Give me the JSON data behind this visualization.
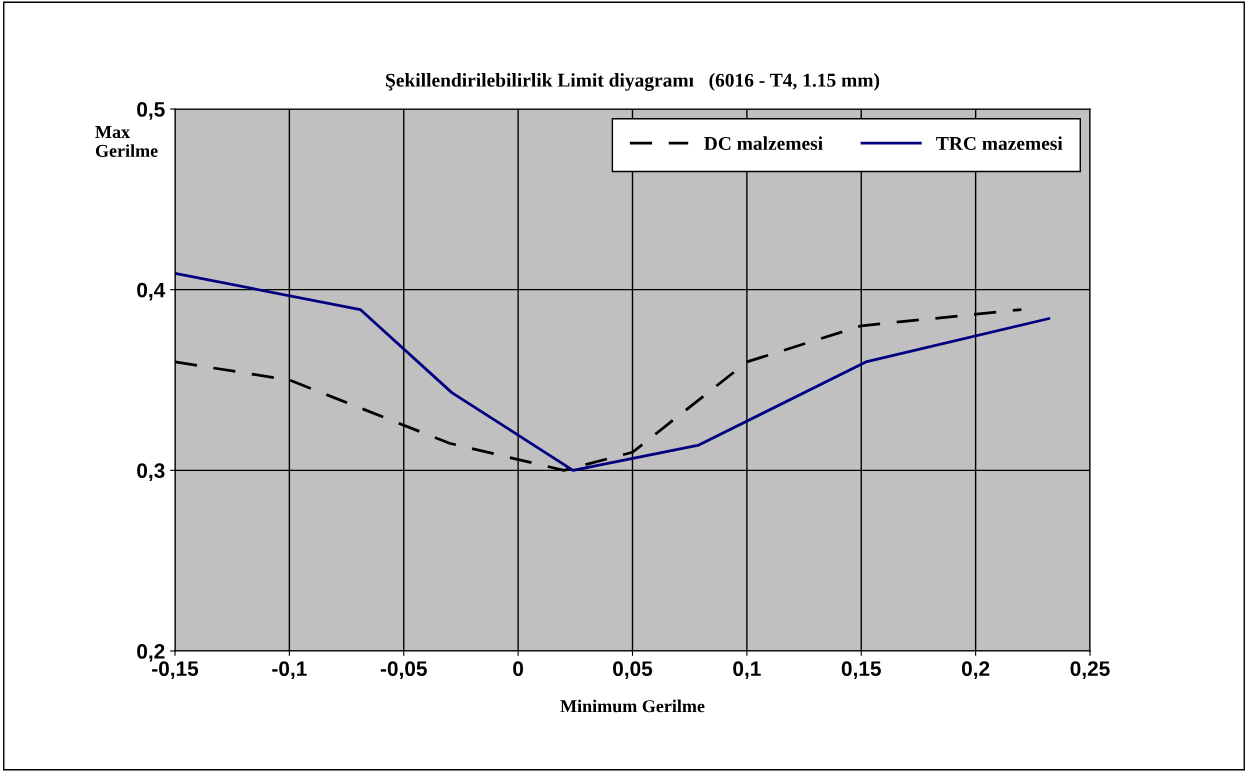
{
  "chart_data": {
    "type": "line",
    "title": "Şekillendirilebilirlik Limit diyagramı   (6016 - T4, 1.15 mm)",
    "xlabel": "Minimum Gerilme",
    "ylabel": "Max\nGerilme",
    "series": [
      {
        "name": "DC malzemesi",
        "color": "#000000",
        "line_style": "dashed",
        "x": [
          -0.15,
          -0.1,
          -0.07,
          -0.03,
          0.02,
          0.05,
          0.1,
          0.15,
          0.22
        ],
        "values": [
          0.36,
          0.35,
          0.335,
          0.315,
          0.3,
          0.31,
          0.36,
          0.38,
          0.389
        ]
      },
      {
        "name": "TRC mazemesi",
        "color": "#000080",
        "line_style": "solid",
        "x": [
          -0.15,
          -0.069,
          -0.029,
          0.024,
          0.079,
          0.152,
          0.232
        ],
        "values": [
          0.409,
          0.389,
          0.343,
          0.3,
          0.314,
          0.36,
          0.384
        ]
      }
    ],
    "xlim": [
      -0.15,
      0.25
    ],
    "ylim": [
      0.2,
      0.5
    ],
    "xticks": [
      {
        "value": -0.15,
        "label": "-0,15"
      },
      {
        "value": -0.1,
        "label": "-0,1"
      },
      {
        "value": -0.05,
        "label": "-0,05"
      },
      {
        "value": 0,
        "label": "0"
      },
      {
        "value": 0.05,
        "label": "0,05"
      },
      {
        "value": 0.1,
        "label": "0,1"
      },
      {
        "value": 0.15,
        "label": "0,15"
      },
      {
        "value": 0.2,
        "label": "0,2"
      },
      {
        "value": 0.25,
        "label": "0,25"
      }
    ],
    "yticks": [
      {
        "value": 0.2,
        "label": "0,2"
      },
      {
        "value": 0.3,
        "label": "0,3"
      },
      {
        "value": 0.4,
        "label": "0,4"
      },
      {
        "value": 0.5,
        "label": "0,5"
      }
    ],
    "grid": true,
    "legend": "top right",
    "marker": "none"
  }
}
